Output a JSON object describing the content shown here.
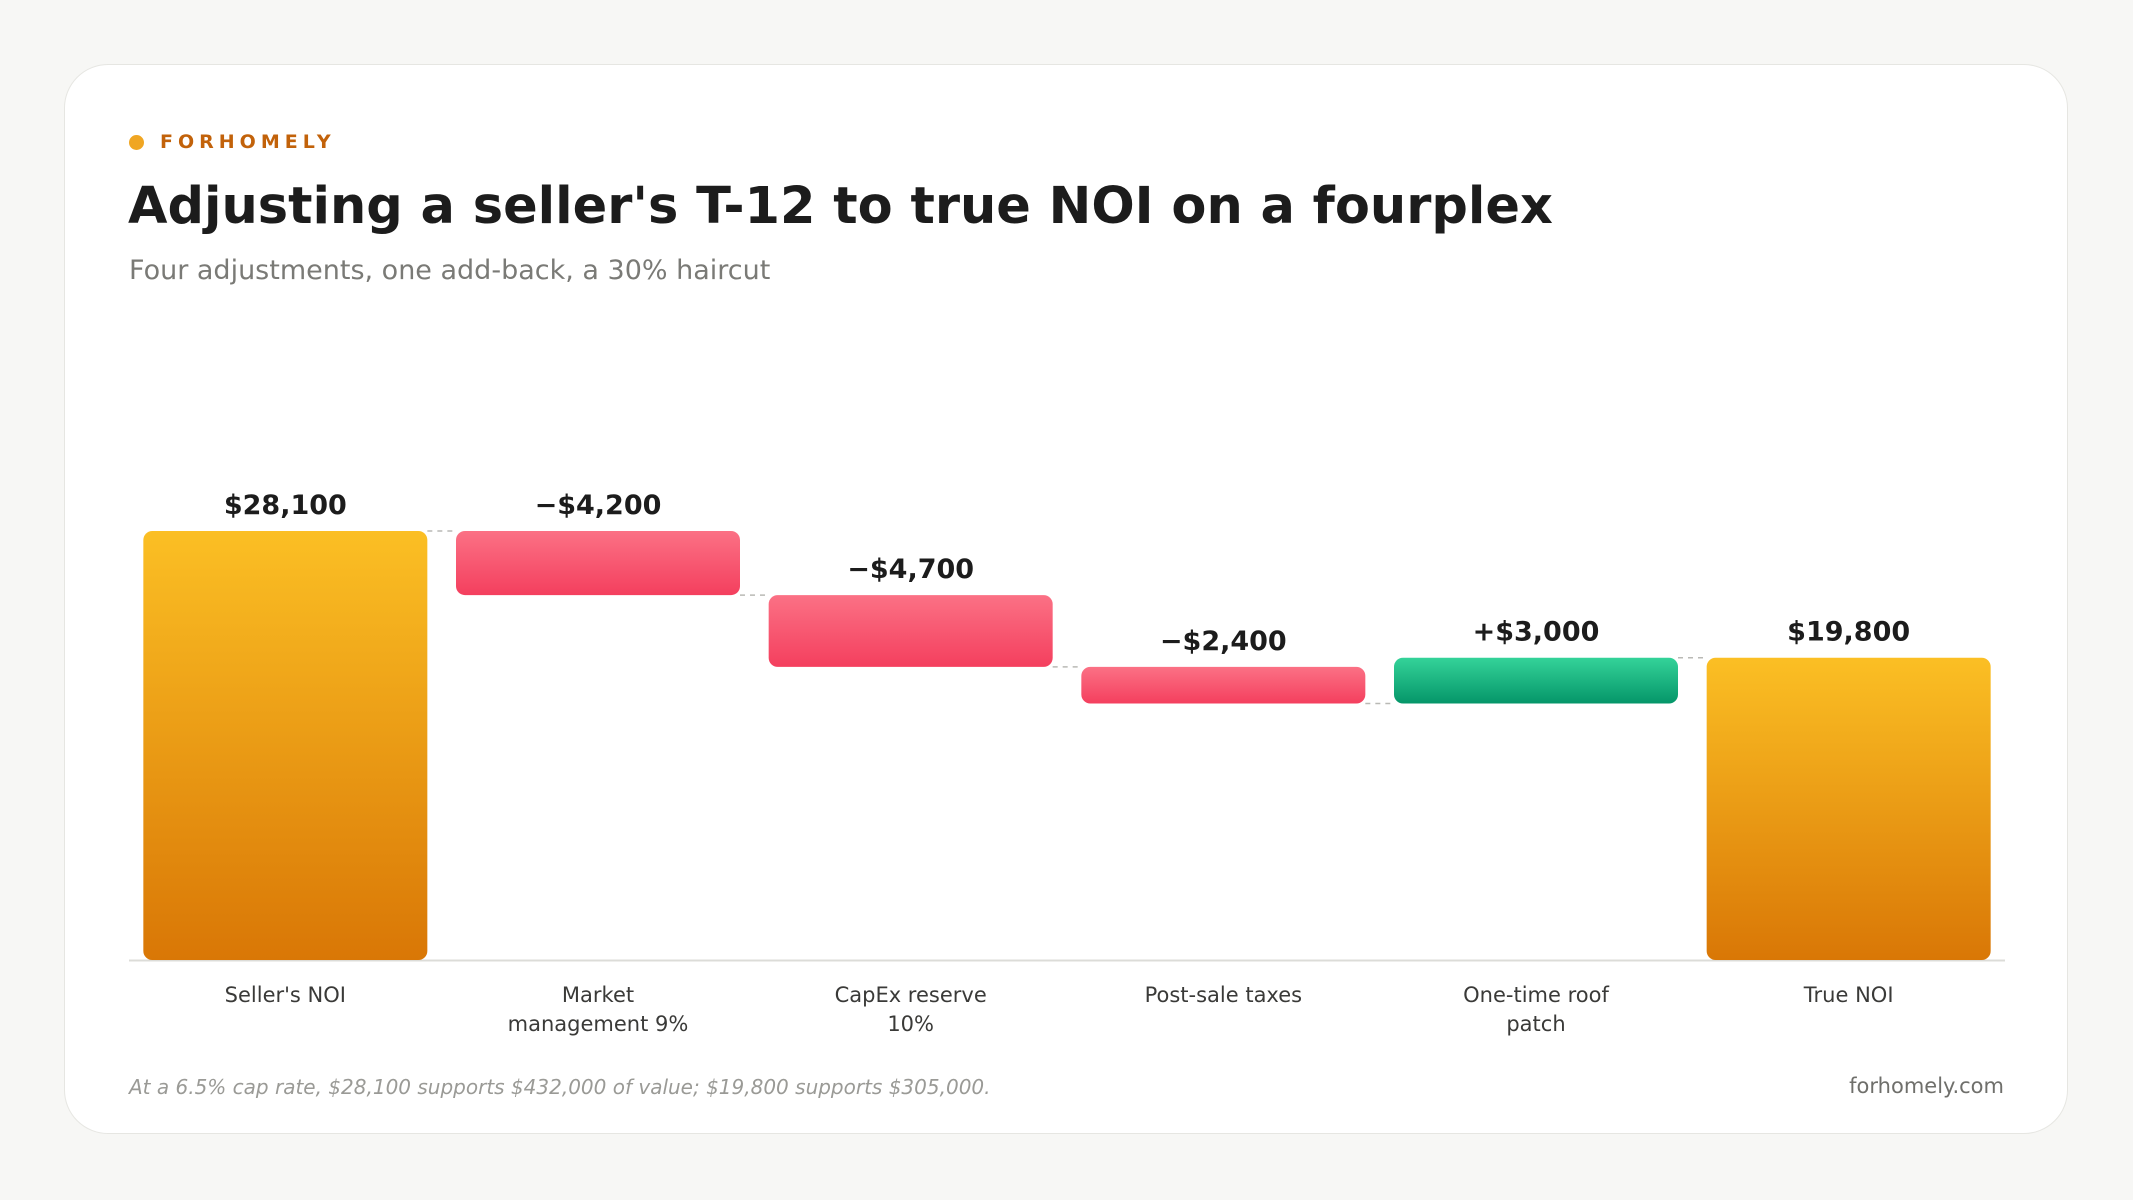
{
  "brand": {
    "name": "FORHOMELY",
    "dot_color": "#f0a623"
  },
  "header": {
    "title": "Adjusting a seller's T-12 to true NOI on a fourplex",
    "subtitle": "Four adjustments, one add-back, a 30% haircut"
  },
  "footer": {
    "note": "At a 6.5% cap rate, $28,100 supports $432,000 of value; $19,800 supports $305,000.",
    "site": "forhomely.com"
  },
  "colors": {
    "total_top": "#fbbf24",
    "total_bottom": "#d97706",
    "negative_top": "#fb7185",
    "negative_bottom": "#f43f5e",
    "positive_top": "#34d399",
    "positive_bottom": "#059669"
  },
  "chart_data": {
    "type": "waterfall",
    "title": "Adjusting a seller's T-12 to true NOI on a fourplex",
    "subtitle": "Four adjustments, one add-back, a 30% haircut",
    "categories": [
      "Seller's NOI",
      "Market\nmanagement 9%",
      "CapEx reserve\n10%",
      "Post-sale taxes",
      "One-time roof\npatch",
      "True NOI"
    ],
    "values": [
      28100,
      -4200,
      -4700,
      -2400,
      3000,
      19800
    ],
    "kinds": [
      "total",
      "negative",
      "negative",
      "negative",
      "positive",
      "total"
    ],
    "labels": [
      "$28,100",
      "−$4,200",
      "−$4,700",
      "−$2,400",
      "+$3,000",
      "$19,800"
    ],
    "ylim": [
      0,
      28100
    ],
    "grid": false,
    "connectors": true
  }
}
